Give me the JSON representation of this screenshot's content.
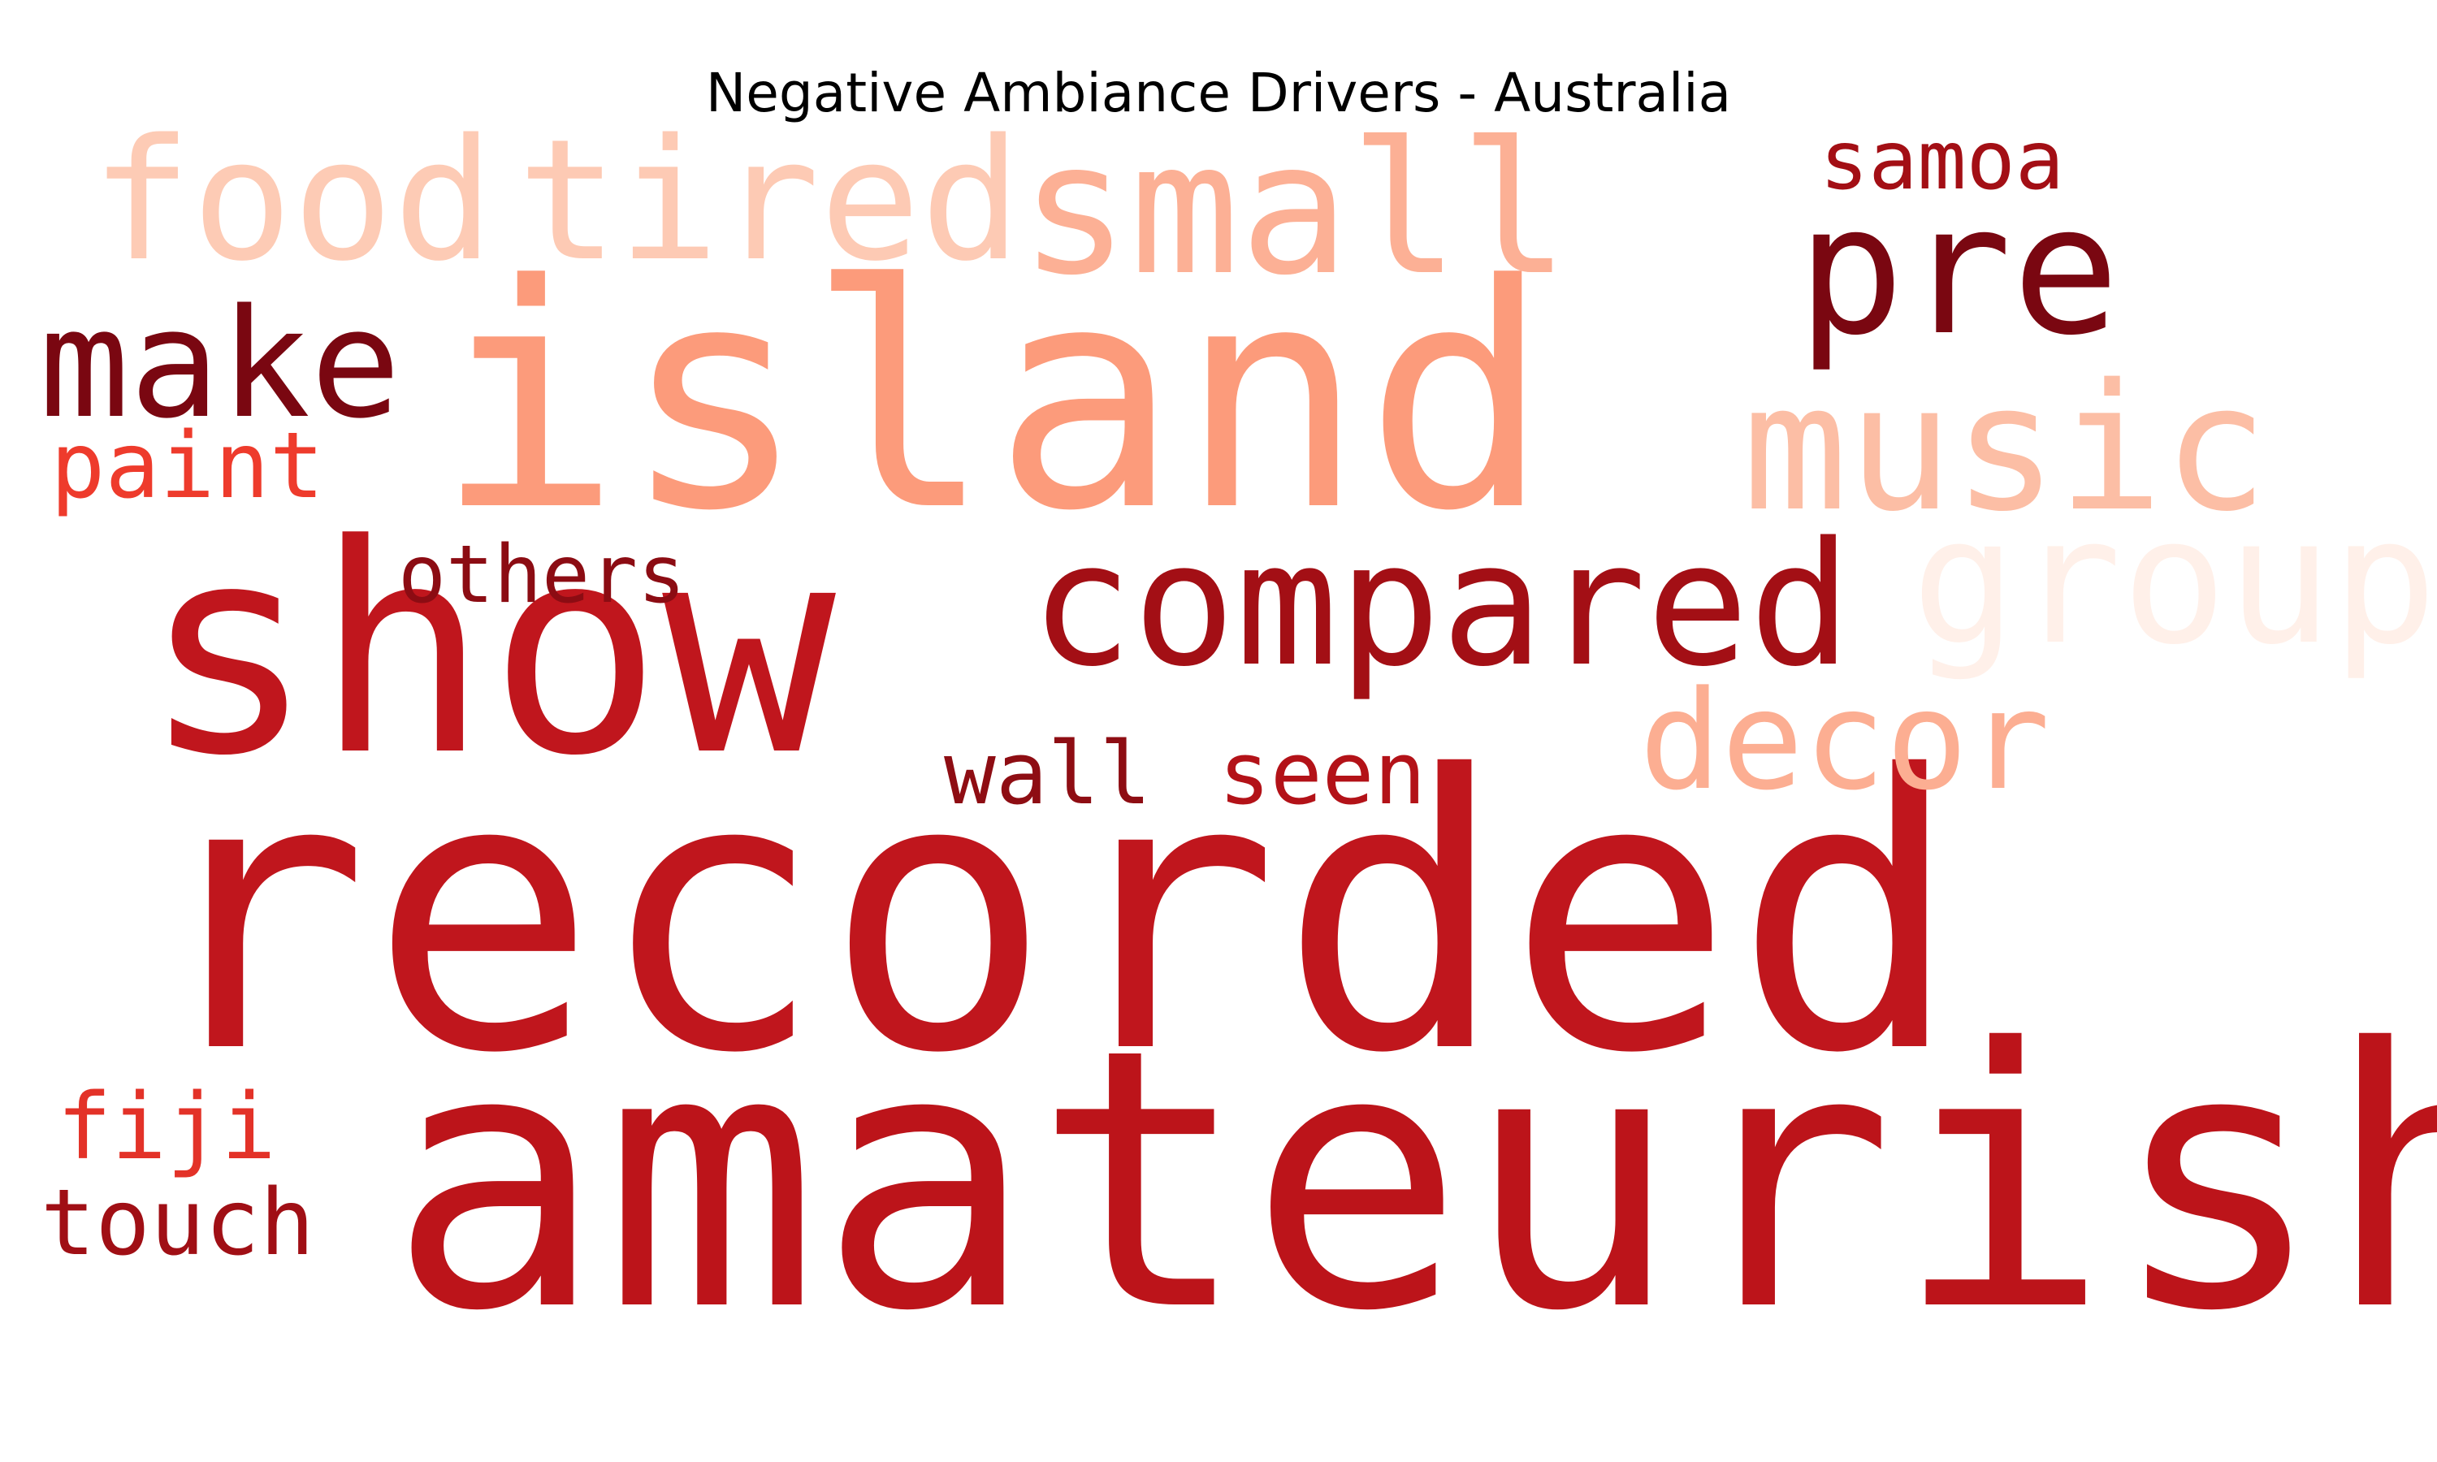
{
  "title": "Negative Ambiance Drivers - Australia",
  "words": [
    {
      "text": "recorded",
      "color": "#c0161d"
    },
    {
      "text": "amateurish",
      "color": "#bc141a"
    },
    {
      "text": "island",
      "color": "#fc9b7b"
    },
    {
      "text": "show",
      "color": "#c0161d"
    },
    {
      "text": "compared",
      "color": "#a30f15"
    },
    {
      "text": "small",
      "color": "#fcb095"
    },
    {
      "text": "food",
      "color": "#fdcbb5"
    },
    {
      "text": "tired",
      "color": "#fdcab4"
    },
    {
      "text": "music",
      "color": "#fcbea5"
    },
    {
      "text": "group",
      "color": "#fff0e9"
    },
    {
      "text": "pre",
      "color": "#7a0711"
    },
    {
      "text": "make",
      "color": "#7a0711"
    },
    {
      "text": "decor",
      "color": "#fcae92"
    },
    {
      "text": "samoa",
      "color": "#a30f15"
    },
    {
      "text": "others",
      "color": "#8c0c13"
    },
    {
      "text": "paint",
      "color": "#ee3b2c"
    },
    {
      "text": "wall",
      "color": "#8e0d13"
    },
    {
      "text": "seen",
      "color": "#b31218"
    },
    {
      "text": "fiji",
      "color": "#e33228"
    },
    {
      "text": "touch",
      "color": "#a00f15"
    }
  ]
}
